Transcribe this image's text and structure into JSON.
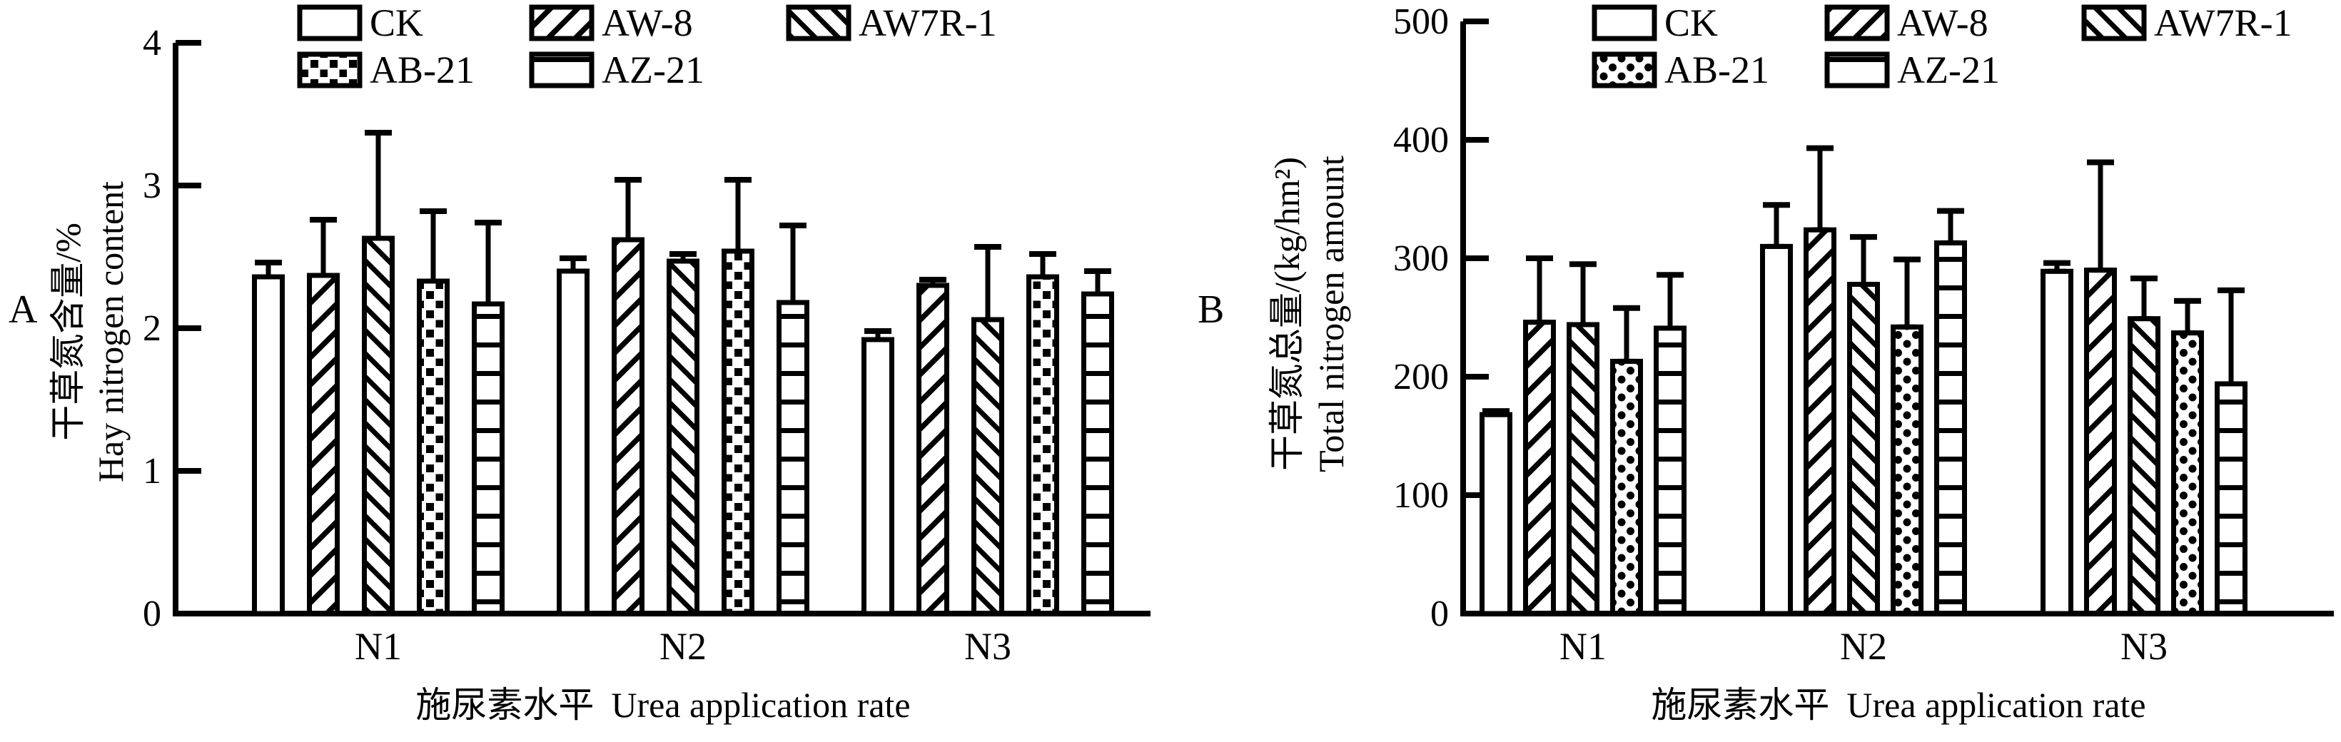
{
  "colors": {
    "ink": "#000000",
    "background": "#ffffff"
  },
  "chart_data": [
    {
      "type": "bar",
      "panel_letter": "A",
      "categories": [
        "N1",
        "N2",
        "N3"
      ],
      "series": [
        {
          "name": "CK",
          "pattern": "none",
          "values": [
            2.36,
            2.4,
            1.92
          ],
          "errors": [
            0.1,
            0.09,
            0.06
          ]
        },
        {
          "name": "AW-8",
          "pattern": "diag-up",
          "values": [
            2.37,
            2.62,
            2.3
          ],
          "errors": [
            0.39,
            0.42,
            0.04
          ]
        },
        {
          "name": "AW7R-1",
          "pattern": "diag-down",
          "values": [
            2.63,
            2.47,
            2.06
          ],
          "errors": [
            0.74,
            0.05,
            0.51
          ]
        },
        {
          "name": "AB-21",
          "pattern": "dots-square",
          "values": [
            2.33,
            2.54,
            2.36
          ],
          "errors": [
            0.49,
            0.5,
            0.16
          ]
        },
        {
          "name": "AZ-21",
          "pattern": "horiz",
          "values": [
            2.17,
            2.18,
            2.24
          ],
          "errors": [
            0.57,
            0.54,
            0.16
          ]
        }
      ],
      "ylabel_zh": "干草氮含量/%",
      "ylabel_en": "Hay nitrogen content",
      "xlabel_zh": "施尿素水平",
      "xlabel_en": "Urea application rate",
      "ylim": [
        0,
        4
      ],
      "yticks": [
        0,
        1,
        2,
        3,
        4
      ],
      "legend_rows": [
        [
          "CK",
          "AW-8",
          "AW7R-1"
        ],
        [
          "AB-21",
          "AZ-21"
        ]
      ],
      "legend_position": "top",
      "grid": false,
      "error_bars": "upper, capped"
    },
    {
      "type": "bar",
      "panel_letter": "B",
      "categories": [
        "N1",
        "N2",
        "N3"
      ],
      "series": [
        {
          "name": "CK",
          "pattern": "none",
          "values": [
            168,
            310,
            289
          ],
          "errors": [
            3,
            35,
            7
          ]
        },
        {
          "name": "AW-8",
          "pattern": "diag-up",
          "values": [
            246,
            324,
            290
          ],
          "errors": [
            54,
            69,
            91
          ]
        },
        {
          "name": "AW7R-1",
          "pattern": "diag-down",
          "values": [
            244,
            278,
            249
          ],
          "errors": [
            51,
            40,
            34
          ]
        },
        {
          "name": "AB-21",
          "pattern": "dots-round",
          "values": [
            213,
            242,
            237
          ],
          "errors": [
            45,
            57,
            27
          ]
        },
        {
          "name": "AZ-21",
          "pattern": "horiz",
          "values": [
            241,
            313,
            194
          ],
          "errors": [
            45,
            27,
            79
          ]
        }
      ],
      "ylabel_zh": "干草氮总量/(kg/hm²)",
      "ylabel_en": "Total nitrogen amount",
      "xlabel_zh": "施尿素水平",
      "xlabel_en": "Urea application rate",
      "ylim": [
        0,
        500
      ],
      "yticks": [
        0,
        100,
        200,
        300,
        400,
        500
      ],
      "legend_rows": [
        [
          "CK",
          "AW-8",
          "AW7R-1"
        ],
        [
          "AB-21",
          "AZ-21"
        ]
      ],
      "legend_position": "top",
      "grid": false,
      "error_bars": "upper, capped"
    }
  ]
}
